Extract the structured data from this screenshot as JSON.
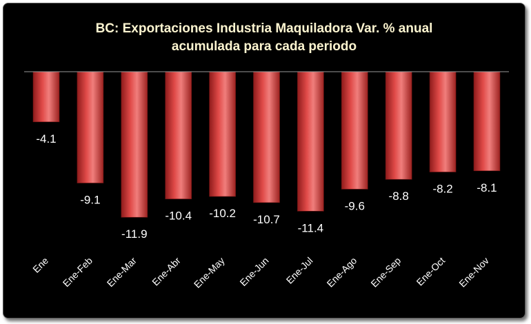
{
  "chart_data": {
    "type": "bar",
    "title_lines": [
      "BC: Exportaciones Industria Maquiladora Var. % anual",
      "acumulada para cada periodo"
    ],
    "categories": [
      "Ene",
      "Ene-Feb",
      "Ene-Mar",
      "Ene-Abr",
      "Ene-May",
      "Ene-Jun",
      "Ene-Jul",
      "Ene-Ago",
      "Ene-Sep",
      "Ene-Oct",
      "Ene-Nov"
    ],
    "values": [
      -4.1,
      -9.1,
      -11.9,
      -10.4,
      -10.2,
      -10.7,
      -11.4,
      -9.6,
      -8.8,
      -8.2,
      -8.1
    ],
    "value_labels": [
      "-4.1",
      "-9.1",
      "-11.9",
      "-10.4",
      "-10.2",
      "-10.7",
      "-11.4",
      "-9.6",
      "-8.8",
      "-8.2",
      "-8.1"
    ],
    "xlabel": "",
    "ylabel": "",
    "ylim": [
      -12,
      0
    ],
    "grid": false,
    "legend": "none",
    "colors": {
      "background": "#000000",
      "bar_dark": "#8e1b1b",
      "bar_mid": "#d9403f",
      "bar_light": "#f07e7c",
      "text": "#ffffff",
      "title": "#fdf5d0",
      "axis_line": "#9a9a9a"
    }
  }
}
